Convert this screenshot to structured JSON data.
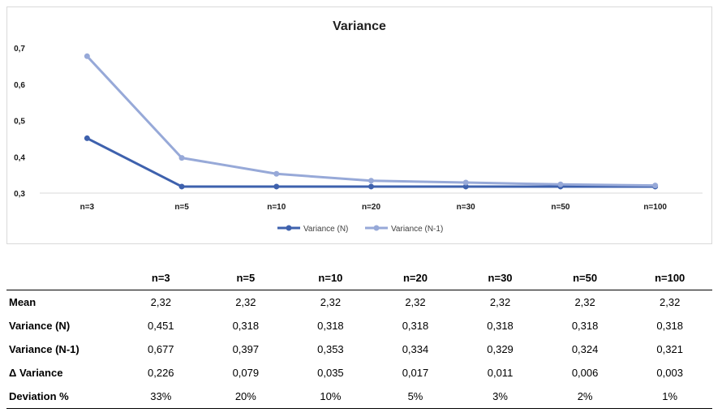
{
  "chart_data": {
    "type": "line",
    "title": "Variance",
    "categories": [
      "n=3",
      "n=5",
      "n=10",
      "n=20",
      "n=30",
      "n=50",
      "n=100"
    ],
    "series": [
      {
        "name": "Variance (N)",
        "color": "#3E61AD",
        "values": [
          0.451,
          0.318,
          0.318,
          0.318,
          0.318,
          0.318,
          0.318
        ]
      },
      {
        "name": "Variance (N-1)",
        "color": "#97A9D8",
        "values": [
          0.677,
          0.397,
          0.353,
          0.334,
          0.329,
          0.324,
          0.321
        ]
      }
    ],
    "ylim": [
      0.3,
      0.7
    ],
    "yticks": [
      "0,3",
      "0,4",
      "0,5",
      "0,6",
      "0,7"
    ],
    "ytick_values": [
      0.3,
      0.4,
      0.5,
      0.6,
      0.7
    ],
    "xlabel": "",
    "ylabel": "",
    "grid": false,
    "legend_position": "bottom"
  },
  "table": {
    "corner": "",
    "headers": [
      "n=3",
      "n=5",
      "n=10",
      "n=20",
      "n=30",
      "n=50",
      "n=100"
    ],
    "rows": [
      {
        "label": "Mean",
        "values": [
          "2,32",
          "2,32",
          "2,32",
          "2,32",
          "2,32",
          "2,32",
          "2,32"
        ]
      },
      {
        "label": "Variance (N)",
        "values": [
          "0,451",
          "0,318",
          "0,318",
          "0,318",
          "0,318",
          "0,318",
          "0,318"
        ]
      },
      {
        "label": "Variance (N-1)",
        "values": [
          "0,677",
          "0,397",
          "0,353",
          "0,334",
          "0,329",
          "0,324",
          "0,321"
        ]
      },
      {
        "label": "Δ Variance",
        "values": [
          "0,226",
          "0,079",
          "0,035",
          "0,017",
          "0,011",
          "0,006",
          "0,003"
        ]
      },
      {
        "label": "Deviation %",
        "values": [
          "33%",
          "20%",
          "10%",
          "5%",
          "3%",
          "2%",
          "1%"
        ]
      }
    ]
  }
}
